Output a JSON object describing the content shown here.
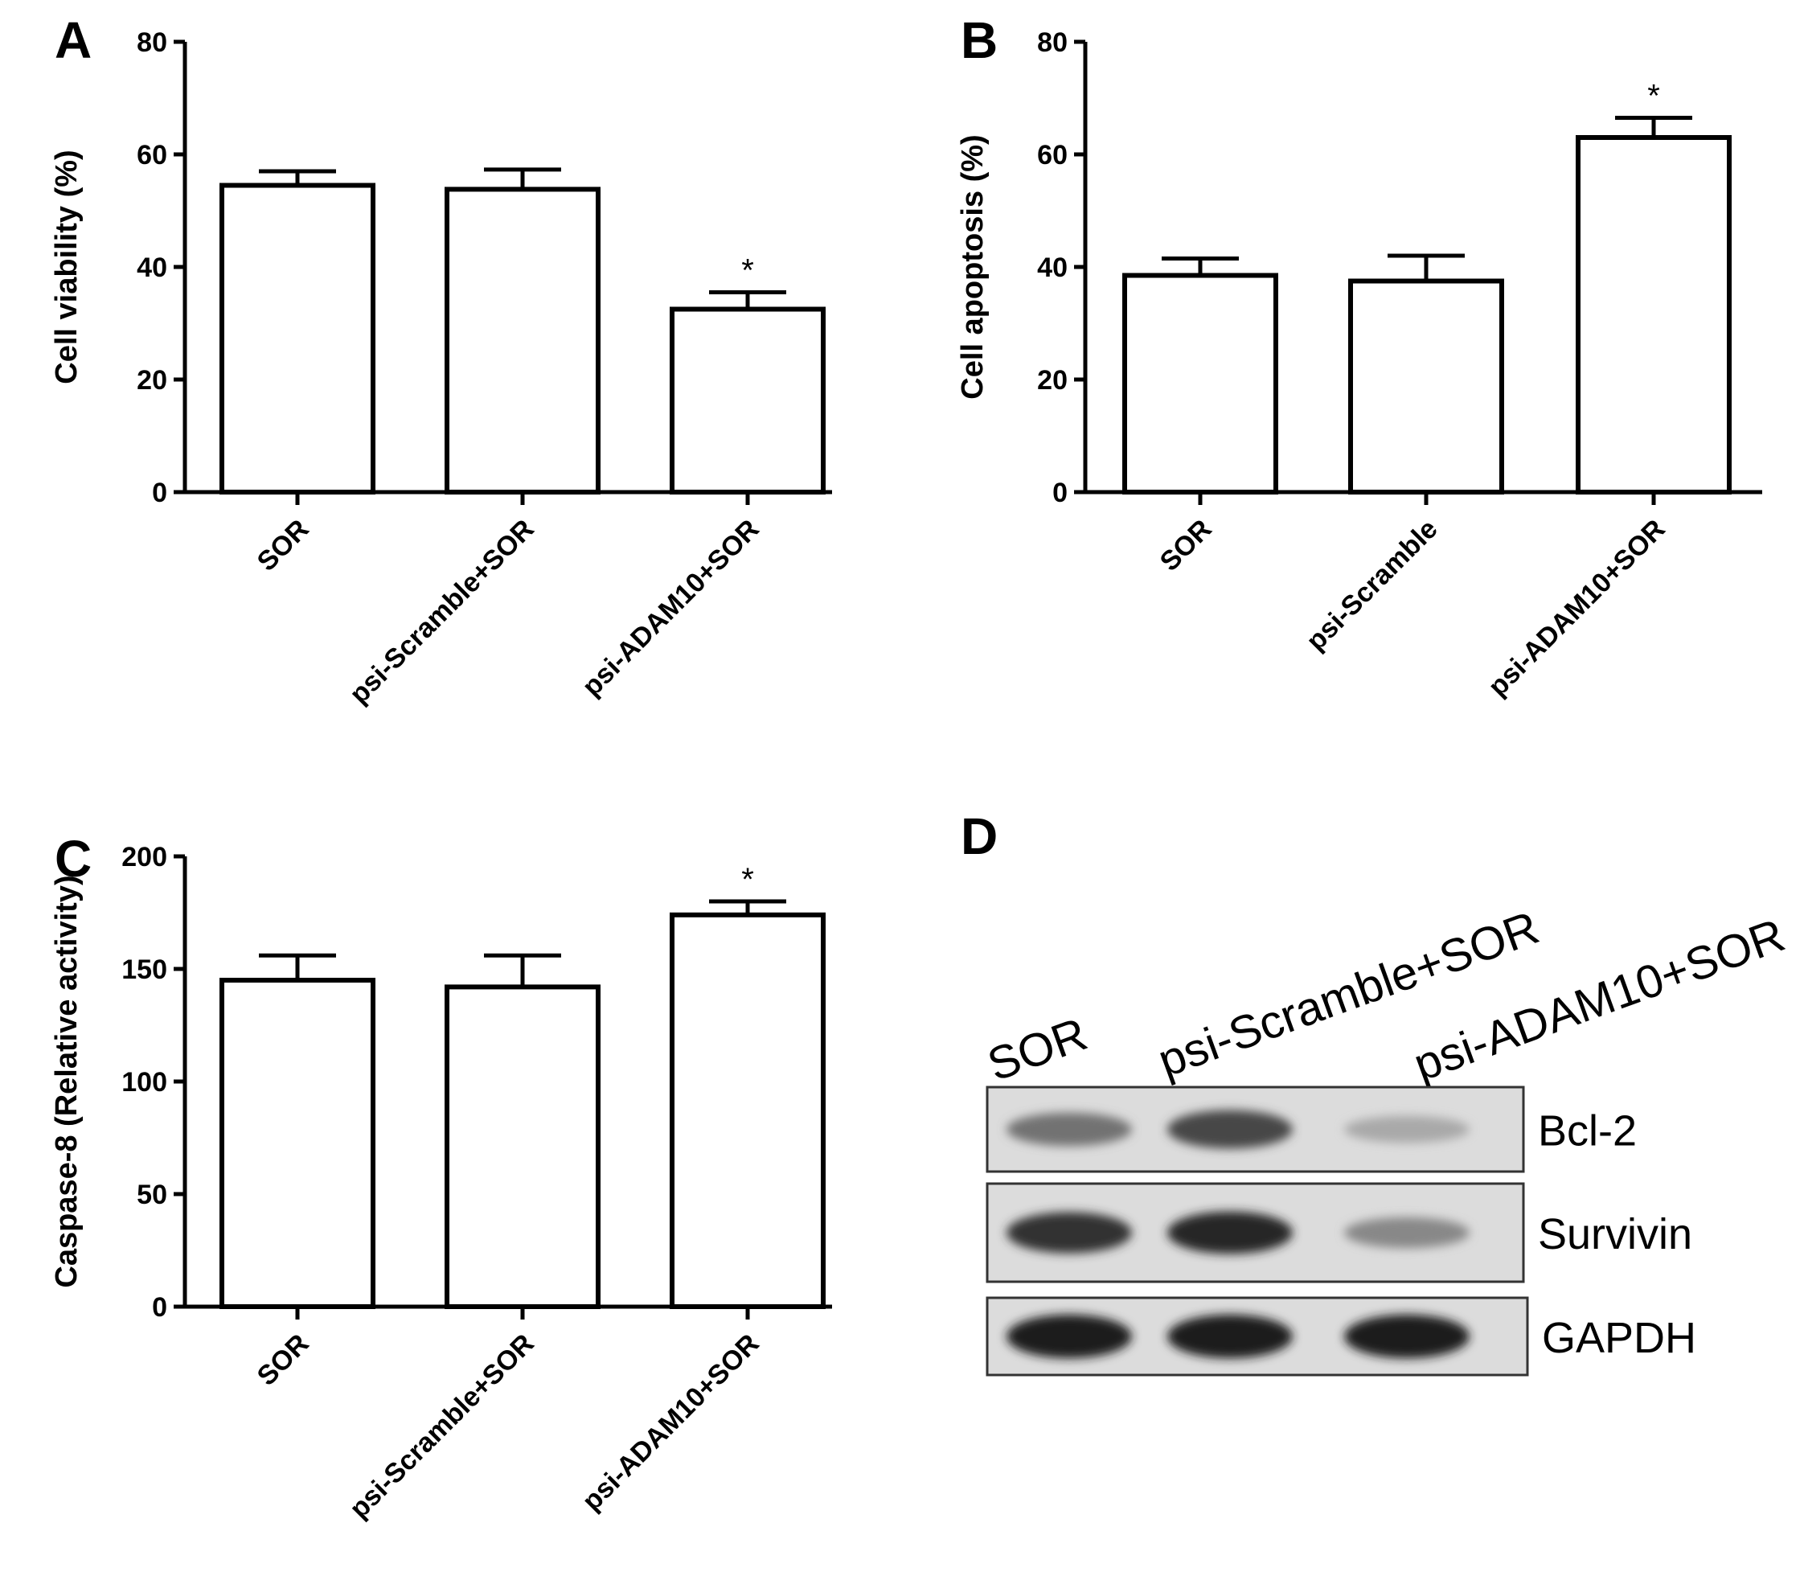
{
  "panels": [
    "A",
    "B",
    "C",
    "D"
  ],
  "blot": {
    "lanes": [
      "SOR",
      "psi-Scramble+SOR",
      "psi-ADAM10+SOR"
    ],
    "rows": [
      {
        "label": "Bcl-2",
        "intensity": [
          0.55,
          0.75,
          0.3
        ]
      },
      {
        "label": "Survivin",
        "intensity": [
          0.85,
          0.9,
          0.45
        ]
      },
      {
        "label": "GAPDH",
        "intensity": [
          0.95,
          0.95,
          0.95
        ]
      }
    ]
  },
  "chart_data": [
    {
      "panel": "A",
      "type": "bar",
      "ylabel": "Cell viability (%)",
      "categories": [
        "SOR",
        "psi-Scramble+SOR",
        "psi-ADAM10+SOR"
      ],
      "values": [
        54.5,
        53.8,
        32.5
      ],
      "errors": [
        2.5,
        3.5,
        3.0
      ],
      "significance": [
        "",
        "",
        "*"
      ],
      "ylim": [
        0,
        80
      ],
      "yticks": [
        0,
        20,
        40,
        60,
        80
      ]
    },
    {
      "panel": "B",
      "type": "bar",
      "ylabel": "Cell apoptosis (%)",
      "categories": [
        "SOR",
        "psi-Scramble",
        "psi-ADAM10+SOR"
      ],
      "values": [
        38.5,
        37.5,
        63.0
      ],
      "errors": [
        3.0,
        4.5,
        3.5
      ],
      "significance": [
        "",
        "",
        "*"
      ],
      "ylim": [
        0,
        80
      ],
      "yticks": [
        0,
        20,
        40,
        60,
        80
      ]
    },
    {
      "panel": "C",
      "type": "bar",
      "ylabel": "Caspase-8 (Relative activity)",
      "categories": [
        "SOR",
        "psi-Scramble+SOR",
        "psi-ADAM10+SOR"
      ],
      "values": [
        145,
        142,
        174
      ],
      "errors": [
        11,
        14,
        6
      ],
      "significance": [
        "",
        "",
        "*"
      ],
      "ylim": [
        0,
        200
      ],
      "yticks": [
        0,
        50,
        100,
        150,
        200
      ]
    }
  ]
}
